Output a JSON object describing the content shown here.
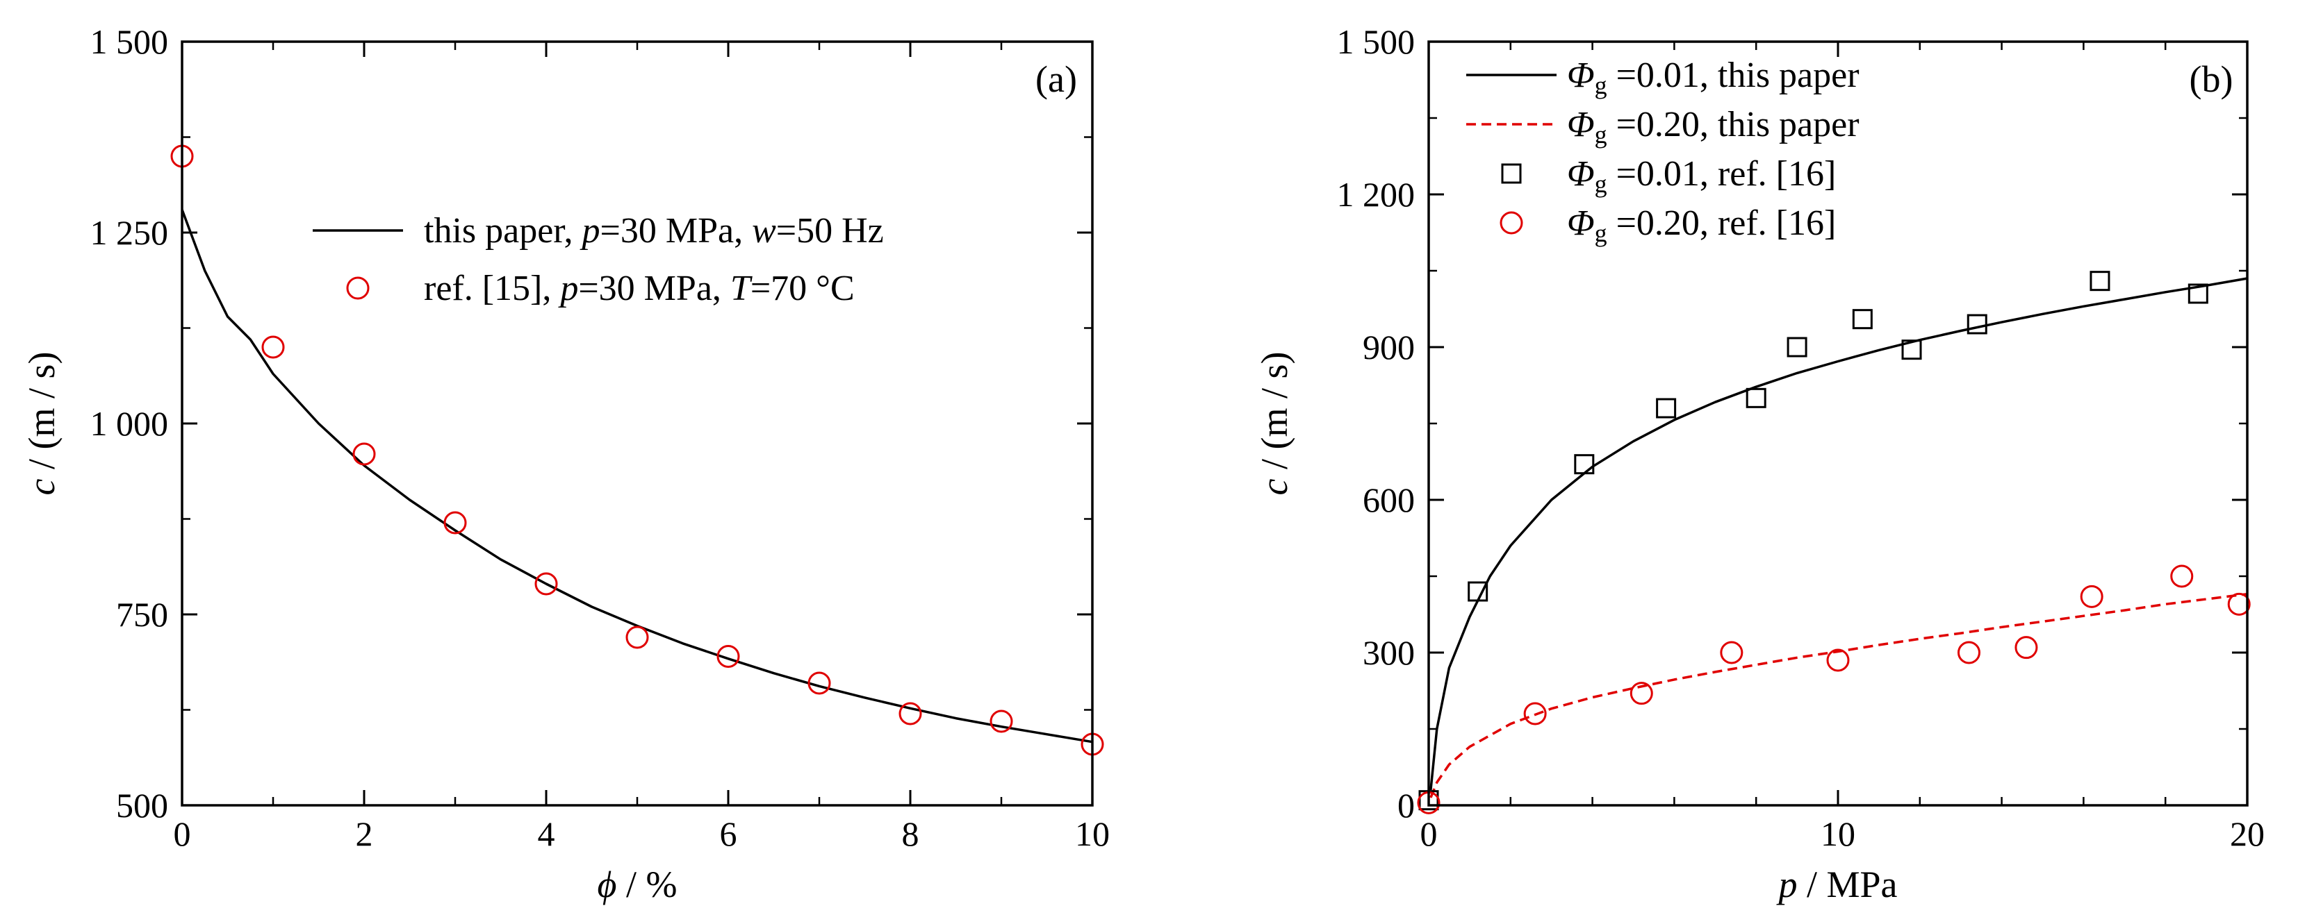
{
  "chart_data": [
    {
      "type": "line",
      "panel_label": "(a)",
      "xlabel_symbol": "ϕ",
      "xlabel_unit": " / %",
      "ylabel_symbol": "c",
      "ylabel_unit": " / (m / s)",
      "xlim": [
        0,
        10
      ],
      "ylim": [
        500,
        1500
      ],
      "xticks": [
        0,
        2,
        4,
        6,
        8,
        10
      ],
      "xtick_labels": [
        "0",
        "2",
        "4",
        "6",
        "8",
        "10"
      ],
      "yticks": [
        500,
        750,
        1000,
        1250,
        1500
      ],
      "ytick_labels": [
        "500",
        "750",
        "1 000",
        "1 250",
        "1 500"
      ],
      "grid": false,
      "legend_placement": "upper-center",
      "series": [
        {
          "name": "this paper, p=30 MPa, w=50 Hz",
          "legend": [
            [
              "this paper, ",
              ""
            ],
            [
              "p",
              "i"
            ],
            [
              "=30 MPa, ",
              ""
            ],
            [
              "w",
              "i"
            ],
            [
              "=50 Hz",
              ""
            ]
          ],
          "style": "line",
          "color": "#000000",
          "x": [
            0,
            0.25,
            0.5,
            0.75,
            1,
            1.5,
            2,
            2.5,
            3,
            3.5,
            4,
            4.5,
            5,
            5.5,
            6,
            6.5,
            7,
            7.5,
            8,
            8.5,
            9,
            9.5,
            10
          ],
          "y": [
            1280,
            1200,
            1140,
            1110,
            1065,
            1000,
            945,
            900,
            860,
            822,
            790,
            760,
            735,
            712,
            692,
            673,
            656,
            641,
            627,
            614,
            603,
            593,
            583
          ]
        },
        {
          "name": "ref. [15], p=30 MPa, T=70 °C",
          "legend": [
            [
              "ref. [15], ",
              ""
            ],
            [
              "p",
              "i"
            ],
            [
              "=30 MPa, ",
              ""
            ],
            [
              "T",
              "i"
            ],
            [
              "=70 °C",
              ""
            ]
          ],
          "style": "circle",
          "color": "#e00000",
          "x": [
            0,
            1,
            2,
            3,
            4,
            5,
            6,
            7,
            8,
            9,
            10
          ],
          "y": [
            1350,
            1100,
            960,
            870,
            790,
            720,
            695,
            660,
            620,
            610,
            580
          ]
        }
      ]
    },
    {
      "type": "line",
      "panel_label": "(b)",
      "xlabel_symbol": "p",
      "xlabel_unit": " / MPa",
      "ylabel_symbol": "c",
      "ylabel_unit": " / (m / s)",
      "xlim": [
        0,
        20
      ],
      "ylim": [
        0,
        1500
      ],
      "xticks": [
        0,
        10,
        20
      ],
      "xtick_labels": [
        "0",
        "10",
        "20"
      ],
      "yticks": [
        0,
        300,
        600,
        900,
        1200,
        1500
      ],
      "ytick_labels": [
        "0",
        "300",
        "600",
        "900",
        "1 200",
        "1 500"
      ],
      "grid": false,
      "legend_placement": "top-left",
      "series": [
        {
          "name": "Φg =0.01, this paper",
          "legend": [
            [
              "Φ",
              "i"
            ],
            [
              "g",
              "s"
            ],
            [
              " =0.01, this paper",
              ""
            ]
          ],
          "style": "line",
          "color": "#000000",
          "x": [
            0.05,
            0.2,
            0.5,
            1,
            1.5,
            2,
            3,
            4,
            5,
            6,
            7,
            8,
            9,
            10,
            11,
            12,
            13,
            14,
            15,
            16,
            17,
            18,
            19,
            20
          ],
          "y": [
            30,
            150,
            270,
            370,
            450,
            510,
            600,
            665,
            715,
            757,
            792,
            822,
            849,
            872,
            894,
            914,
            932,
            949,
            965,
            980,
            994,
            1008,
            1021,
            1035
          ]
        },
        {
          "name": "Φg =0.20, this paper",
          "legend": [
            [
              "Φ",
              "i"
            ],
            [
              "g",
              "s"
            ],
            [
              " =0.20, this paper",
              ""
            ]
          ],
          "style": "dashed",
          "color": "#e00000",
          "x": [
            0.05,
            0.2,
            0.5,
            1,
            2,
            3,
            4,
            5,
            6,
            7,
            8,
            9,
            10,
            11,
            12,
            13,
            14,
            15,
            16,
            17,
            18,
            19,
            20
          ],
          "y": [
            15,
            45,
            80,
            115,
            160,
            190,
            212,
            230,
            247,
            262,
            276,
            290,
            302,
            315,
            327,
            338,
            350,
            361,
            372,
            383,
            395,
            405,
            415
          ]
        },
        {
          "name": "Φg =0.01, ref. [16]",
          "legend": [
            [
              "Φ",
              "i"
            ],
            [
              "g",
              "s"
            ],
            [
              " =0.01, ref. [16]",
              ""
            ]
          ],
          "style": "square",
          "color": "#000000",
          "x": [
            0,
            1.2,
            3.8,
            5.8,
            8,
            9,
            10.6,
            11.8,
            13.4,
            16.4,
            18.8
          ],
          "y": [
            10,
            420,
            670,
            780,
            800,
            900,
            955,
            895,
            945,
            1030,
            1005
          ]
        },
        {
          "name": "Φg =0.20, ref. [16]",
          "legend": [
            [
              "Φ",
              "i"
            ],
            [
              "g",
              "s"
            ],
            [
              " =0.20, ref. [16]",
              ""
            ]
          ],
          "style": "circle",
          "color": "#e00000",
          "x": [
            0,
            2.6,
            5.2,
            7.4,
            10,
            13.2,
            14.6,
            16.2,
            18.4,
            19.8
          ],
          "y": [
            5,
            180,
            220,
            300,
            285,
            300,
            310,
            410,
            450,
            395
          ]
        }
      ]
    }
  ]
}
